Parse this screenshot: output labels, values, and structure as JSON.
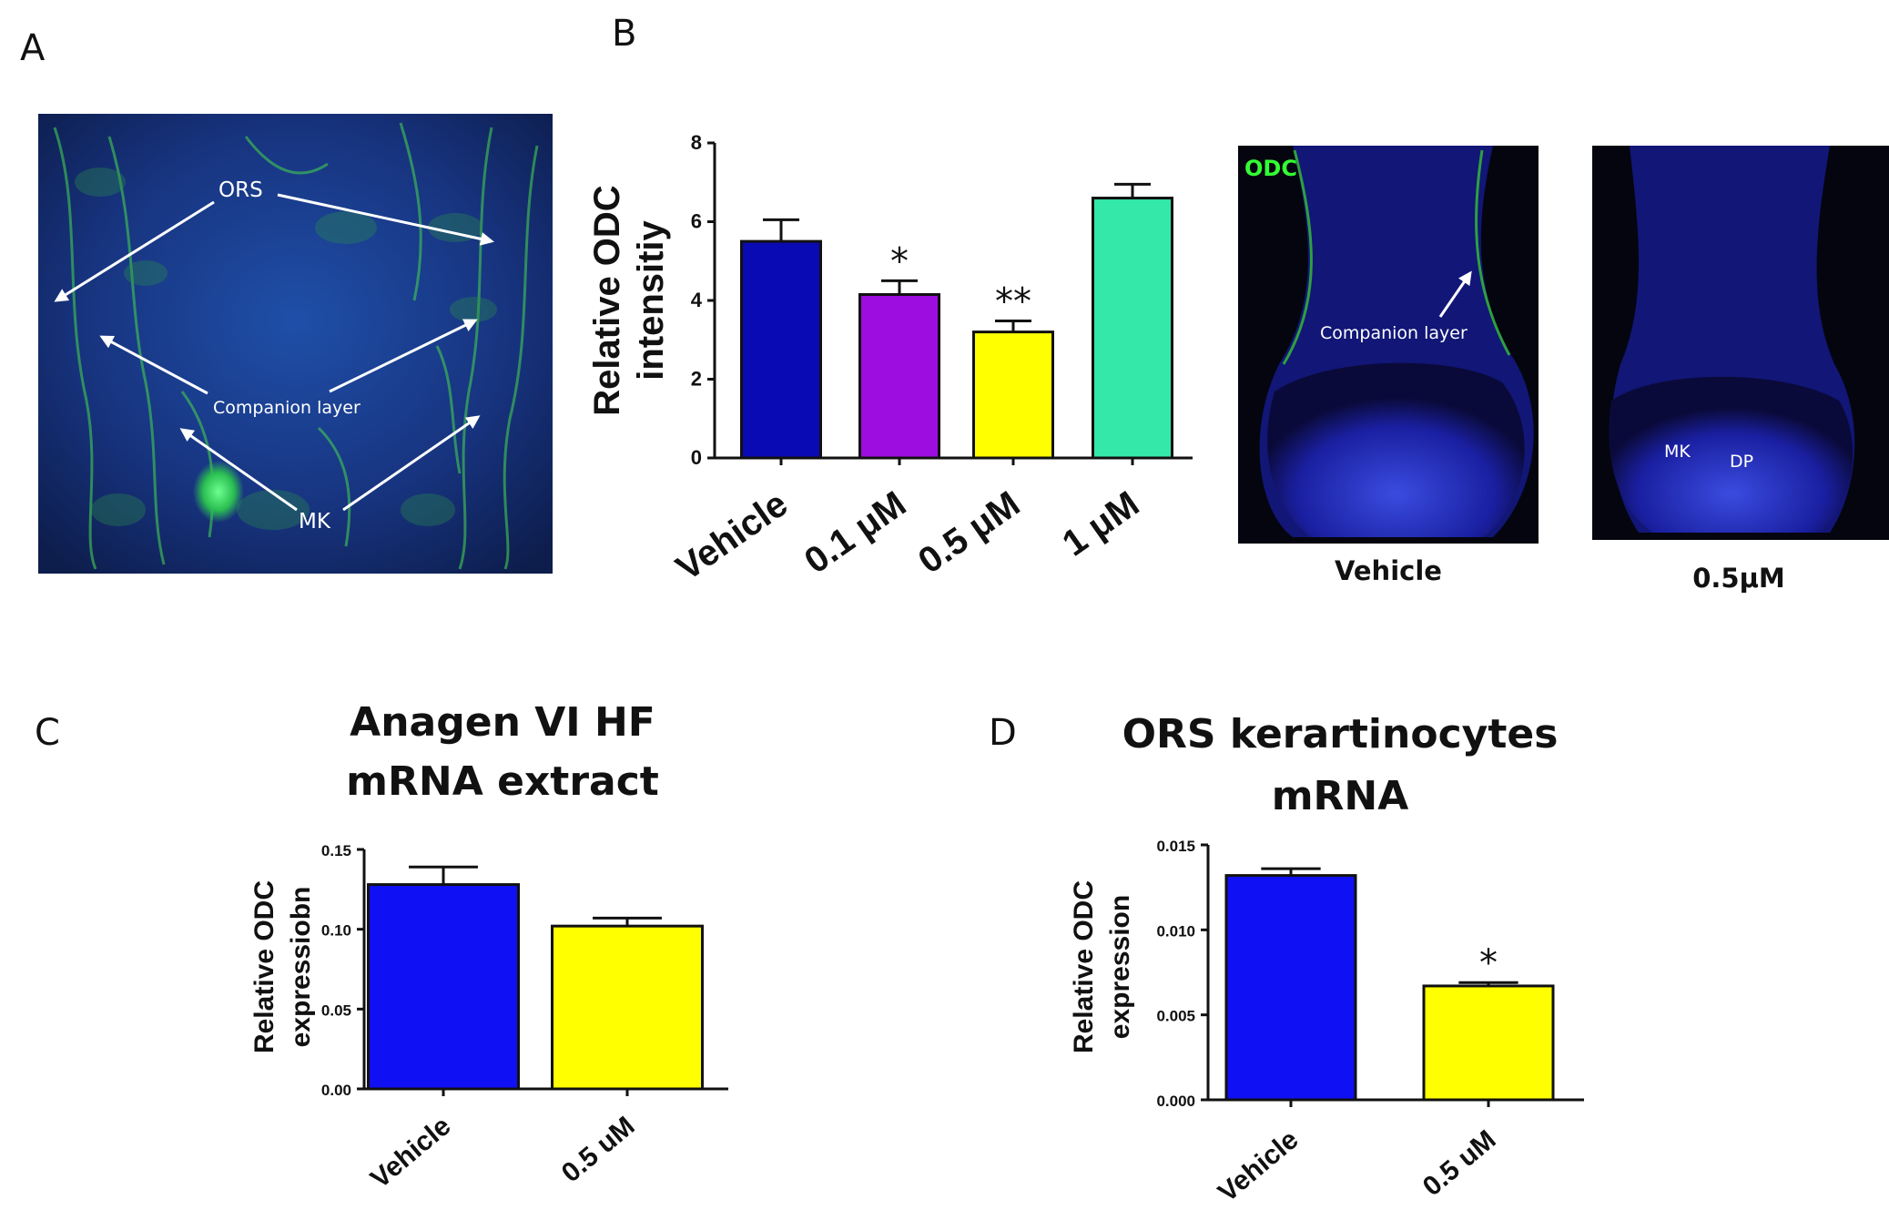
{
  "panels": {
    "A": {
      "letter": "A",
      "labels": {
        "ors": "ORS",
        "companion": "Companion layer",
        "mk": "MK"
      }
    },
    "B": {
      "letter": "B",
      "micrographs": {
        "vehicle": {
          "channel_label": "ODC",
          "annotation": "Companion layer",
          "caption": "Vehicle"
        },
        "treated": {
          "mk": "MK",
          "dp": "DP",
          "caption": "0.5μM"
        }
      }
    },
    "C": {
      "letter": "C"
    },
    "D": {
      "letter": "D"
    }
  },
  "chart_data": [
    {
      "id": "B",
      "type": "bar",
      "title": "",
      "ylabel_lines": [
        "Relative ODC",
        "intensitiy"
      ],
      "ylim": [
        0,
        8
      ],
      "yticks": [
        0,
        2,
        4,
        6,
        8
      ],
      "ytick_labels": [
        "0",
        "2",
        "4",
        "6",
        "8"
      ],
      "categories": [
        "Vehicle",
        "0.1 μM",
        "0.5  μM",
        "1 μM"
      ],
      "values": [
        5.5,
        4.15,
        3.2,
        6.6
      ],
      "errors": [
        0.55,
        0.35,
        0.28,
        0.35
      ],
      "colors": [
        "#0a0ab4",
        "#9e0de0",
        "#ffff00",
        "#33e8a8"
      ],
      "significance": [
        "",
        "*",
        "**",
        ""
      ]
    },
    {
      "id": "C",
      "type": "bar",
      "title_lines": [
        "Anagen VI HF",
        "mRNA extract"
      ],
      "ylabel_lines": [
        "Relative ODC",
        "expressiobn"
      ],
      "ylim": [
        0,
        0.15
      ],
      "yticks": [
        0,
        0.05,
        0.1,
        0.15
      ],
      "ytick_labels": [
        "0.00",
        "0.05",
        "0.10",
        "0.15"
      ],
      "categories": [
        "Vehicle",
        "0.5 uM"
      ],
      "values": [
        0.128,
        0.102
      ],
      "errors": [
        0.011,
        0.005
      ],
      "colors": [
        "#1010f5",
        "#ffff00"
      ],
      "significance": [
        "",
        ""
      ]
    },
    {
      "id": "D",
      "type": "bar",
      "title_lines": [
        "ORS kerartinocytes",
        "mRNA"
      ],
      "ylabel_lines": [
        "Relative ODC",
        "expression"
      ],
      "ylim": [
        0,
        0.015
      ],
      "yticks": [
        0,
        0.005,
        0.01,
        0.015
      ],
      "ytick_labels": [
        "0.000",
        "0.005",
        "0.010",
        "0.015"
      ],
      "categories": [
        "Vehicle",
        "0.5 uM"
      ],
      "values": [
        0.0132,
        0.0067
      ],
      "errors": [
        0.0004,
        0.0002
      ],
      "colors": [
        "#1010f5",
        "#ffff00"
      ],
      "significance": [
        "",
        "*"
      ]
    }
  ]
}
